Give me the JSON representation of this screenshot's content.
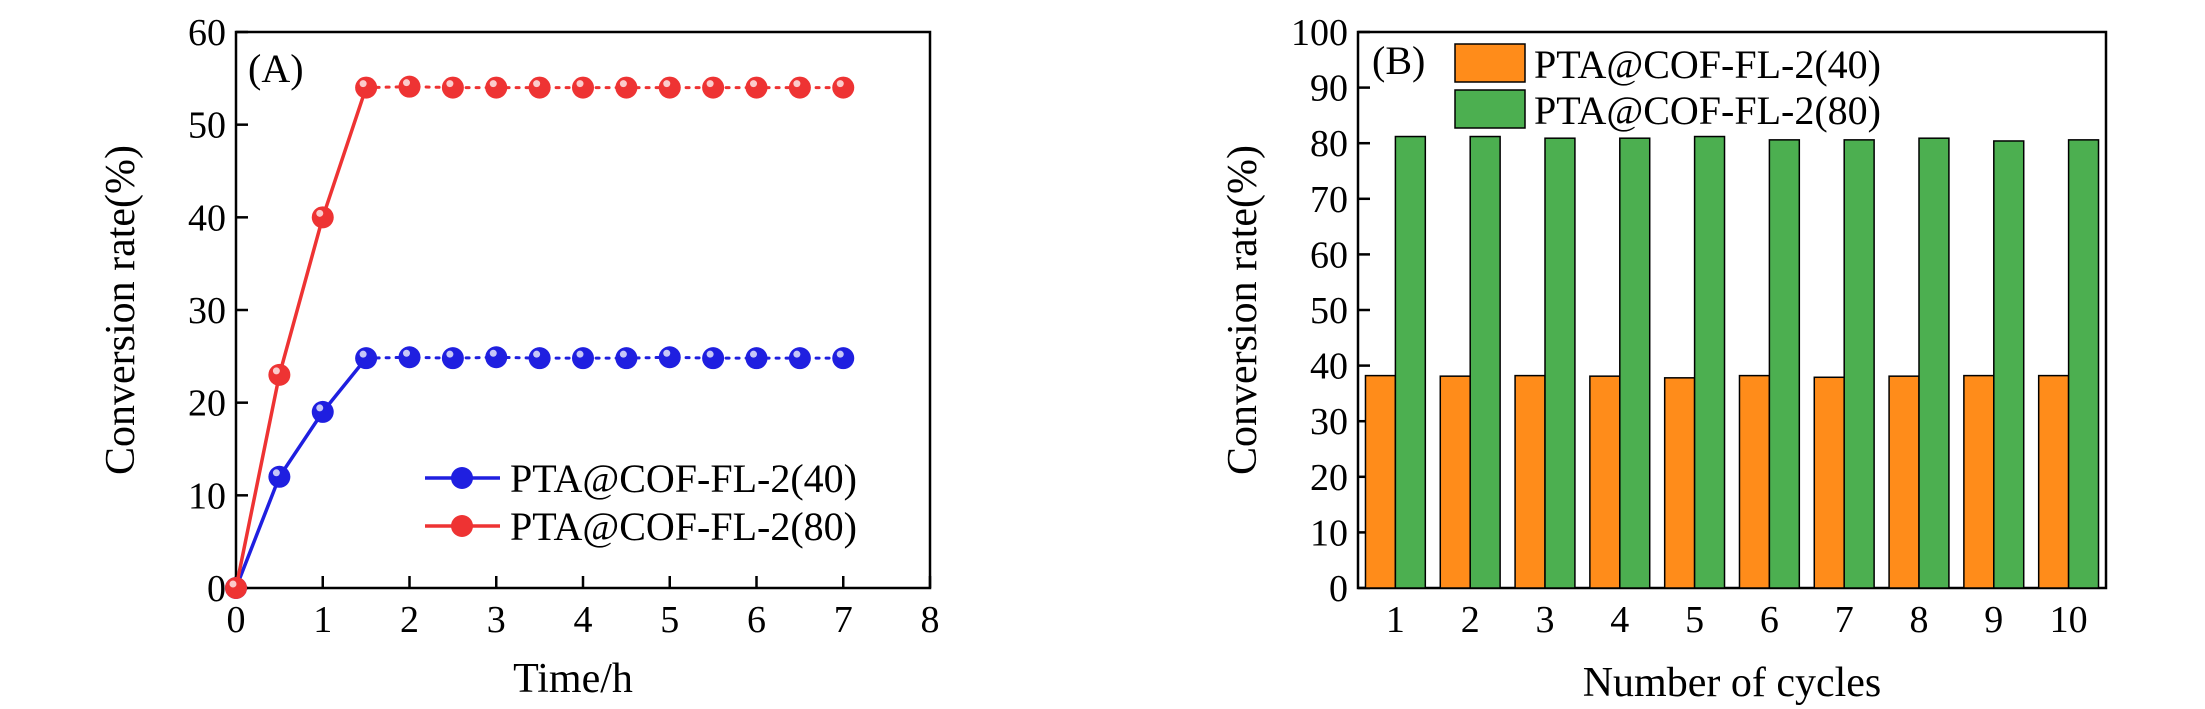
{
  "chart_data": [
    {
      "type": "line",
      "panel_label": "(A)",
      "xlabel": "Time/h",
      "ylabel": "Conversion rate(%)",
      "xlim": [
        0,
        8
      ],
      "ylim": [
        0,
        60
      ],
      "xticks": [
        "0",
        "1",
        "2",
        "3",
        "4",
        "5",
        "6",
        "7",
        "8"
      ],
      "xtick_values": [
        0,
        1,
        2,
        3,
        4,
        5,
        6,
        7,
        8
      ],
      "yticks": [
        "0",
        "10",
        "20",
        "30",
        "40",
        "50",
        "60"
      ],
      "ytick_values": [
        0,
        10,
        20,
        30,
        40,
        50,
        60
      ],
      "legend_position": "lower-right",
      "series": [
        {
          "name": "PTA@COF-FL-2(40)",
          "color": "#1f1fe0",
          "x": [
            0,
            0.5,
            1,
            1.5,
            2,
            2.5,
            3,
            3.5,
            4,
            4.5,
            5,
            5.5,
            6,
            6.5,
            7
          ],
          "y": [
            0,
            12,
            19,
            24.8,
            24.9,
            24.8,
            24.9,
            24.8,
            24.8,
            24.8,
            24.9,
            24.8,
            24.8,
            24.8,
            24.8
          ]
        },
        {
          "name": "PTA@COF-FL-2(80)",
          "color": "#ee3333",
          "x": [
            0,
            0.5,
            1,
            1.5,
            2,
            2.5,
            3,
            3.5,
            4,
            4.5,
            5,
            5.5,
            6,
            6.5,
            7
          ],
          "y": [
            0,
            23,
            40,
            54,
            54.1,
            54,
            54,
            54,
            54,
            54,
            54,
            54,
            54,
            54,
            54
          ]
        }
      ]
    },
    {
      "type": "bar",
      "panel_label": "(B)",
      "xlabel": "Number of cycles",
      "ylabel": "Conversion rate(%)",
      "ylim": [
        0,
        100
      ],
      "yticks": [
        "0",
        "10",
        "20",
        "30",
        "40",
        "50",
        "60",
        "70",
        "80",
        "90",
        "100"
      ],
      "ytick_values": [
        0,
        10,
        20,
        30,
        40,
        50,
        60,
        70,
        80,
        90,
        100
      ],
      "categories": [
        "1",
        "2",
        "3",
        "4",
        "5",
        "6",
        "7",
        "8",
        "9",
        "10"
      ],
      "legend_position": "top-left",
      "series": [
        {
          "name": "PTA@COF-FL-2(40)",
          "color": "#ff8c1a",
          "values": [
            38.2,
            38.1,
            38.2,
            38.1,
            37.8,
            38.2,
            37.9,
            38.1,
            38.2,
            38.2
          ]
        },
        {
          "name": "PTA@COF-FL-2(80)",
          "color": "#4caf50",
          "values": [
            81.2,
            81.2,
            80.9,
            80.9,
            81.2,
            80.6,
            80.6,
            80.9,
            80.4,
            80.6
          ]
        }
      ]
    }
  ]
}
